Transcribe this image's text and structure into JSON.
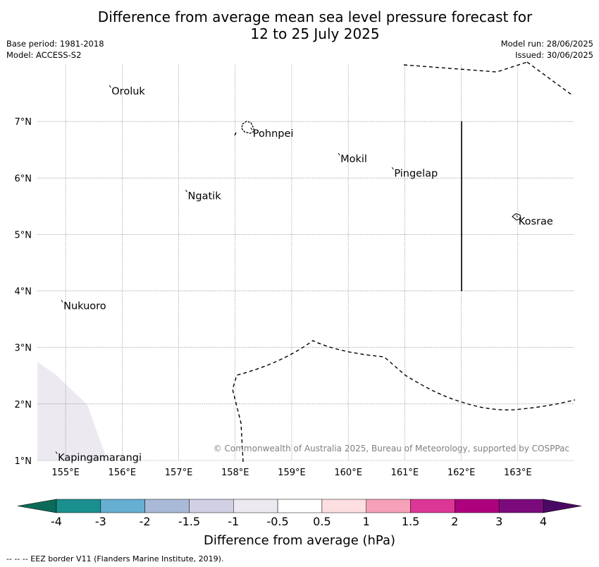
{
  "header": {
    "title_line1": "Difference from average mean sea level pressure forecast for",
    "title_line2": "12 to 25 July 2025",
    "base_period": "Base period: 1981-2018",
    "model": "Model: ACCESS-S2",
    "model_run": "Model run: 28/06/2025",
    "issued": "Issued: 30/06/2025"
  },
  "map": {
    "lon_range": [
      154.5,
      164.0
    ],
    "lat_range": [
      1.0,
      8.0
    ],
    "lon_ticks": [
      "155°E",
      "156°E",
      "157°E",
      "158°E",
      "159°E",
      "160°E",
      "161°E",
      "162°E",
      "163°E"
    ],
    "lat_ticks": [
      "1°N",
      "2°N",
      "3°N",
      "4°N",
      "5°N",
      "6°N",
      "7°N"
    ],
    "places": [
      {
        "name": "Oroluk",
        "lon": 155.8,
        "lat": 7.6
      },
      {
        "name": "Pohnpei",
        "lon": 158.3,
        "lat": 6.85
      },
      {
        "name": "Mokil",
        "lon": 159.85,
        "lat": 6.4
      },
      {
        "name": "Pingelap",
        "lon": 160.8,
        "lat": 6.15
      },
      {
        "name": "Ngatik",
        "lon": 157.15,
        "lat": 5.75
      },
      {
        "name": "Kosrae",
        "lon": 163.0,
        "lat": 5.3
      },
      {
        "name": "Nukuoro",
        "lon": 154.95,
        "lat": 3.8
      },
      {
        "name": "Kapingamarangi",
        "lon": 154.85,
        "lat": 1.12
      }
    ],
    "shaded_region": {
      "category": "-1 to -0.5",
      "color": "#ede9f1"
    },
    "credit": "© Commonwealth of Australia 2025, Bureau of Meteorology, supported by COSPPac"
  },
  "colorbar": {
    "label": "Difference from average (hPa)",
    "ticks": [
      "-4",
      "-3",
      "-2",
      "-1.5",
      "-1",
      "-0.5",
      "0.5",
      "1",
      "1.5",
      "2",
      "3",
      "4"
    ],
    "colors": [
      "#1a8f8e",
      "#66aed2",
      "#a9bad9",
      "#d1d0e5",
      "#ede9f1",
      "#ffffff",
      "#fddfe2",
      "#f6a1b8",
      "#dc3697",
      "#ad017e",
      "#7b0b7c"
    ],
    "low_extend_color": "#0b6b58",
    "high_extend_color": "#4a0a63"
  },
  "footer": {
    "legend": "--  --  -- EEZ border V11 (Flanders Marine Institute, 2019)."
  }
}
